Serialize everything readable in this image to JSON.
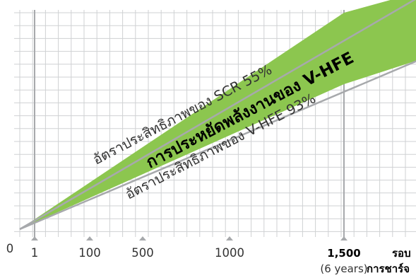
{
  "chart_data": {
    "type": "area",
    "title": "",
    "xlabel": "",
    "ylabel": "",
    "x_ticks": [
      {
        "value": 0,
        "label": "0"
      },
      {
        "value": 1,
        "label": "1"
      },
      {
        "value": 100,
        "label": "100"
      },
      {
        "value": 500,
        "label": "500"
      },
      {
        "value": 1000,
        "label": "1000"
      },
      {
        "value": 1500,
        "label": "1,500",
        "sublabel": "(6 years)"
      }
    ],
    "x_unit_label": "รอบ",
    "x_unit_sublabel": "การชาร์จ",
    "series": [
      {
        "name": "อัตราประสิทธิภาพของ SCR 55%",
        "line": "upper"
      },
      {
        "name": "อัตราประสิทธิภาพของ V-HFE 93%",
        "line": "lower"
      }
    ],
    "band_label": "การประหยัดพลังงานของ V-HFE",
    "colors": {
      "band": "#8cc64f",
      "band_edge": "#a7a9ac",
      "grid": "#cfd1d3",
      "major_grid": "#a7a9ac"
    },
    "grid": true
  }
}
